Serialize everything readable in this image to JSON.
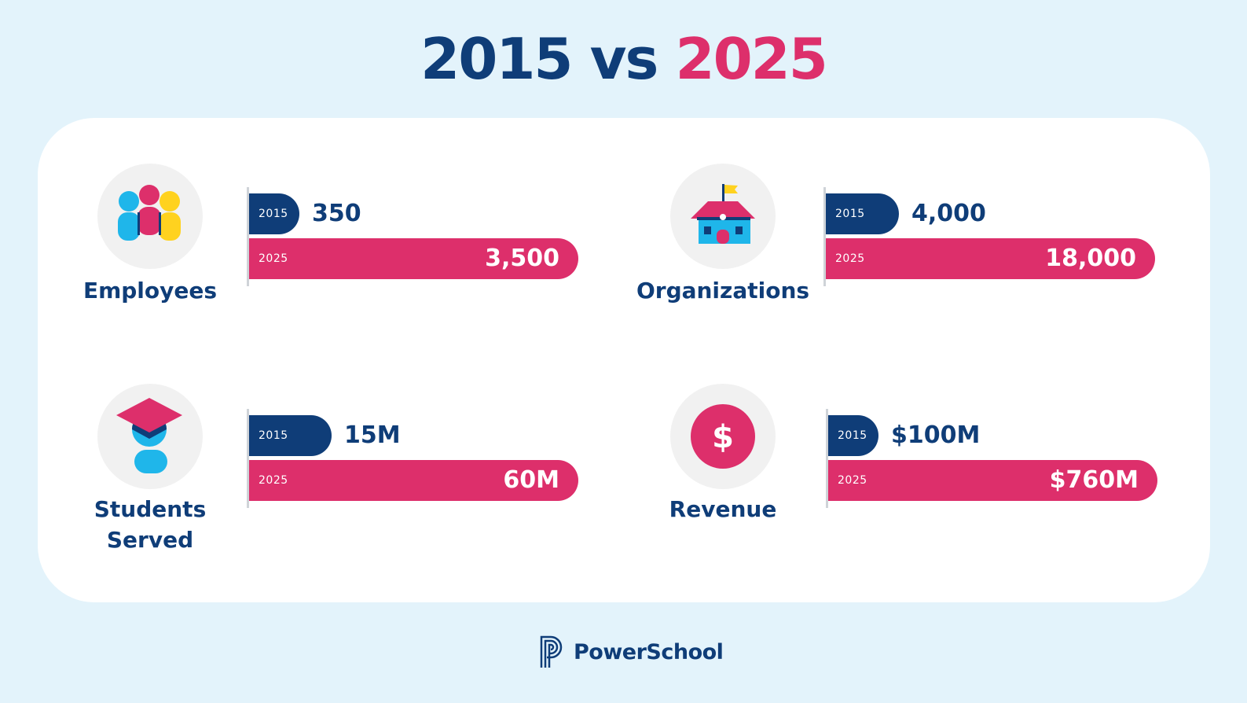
{
  "title": {
    "left": "2015",
    "middle": "vs",
    "right": "2025"
  },
  "colors": {
    "navy": "#0f3d78",
    "pink": "#dd2f6b",
    "background": "#e3f3fb"
  },
  "chart_data": [
    {
      "type": "bar",
      "orientation": "horizontal",
      "label": "Employees",
      "icon": "people-icon",
      "series": [
        {
          "name": "2015",
          "value": 350,
          "display": "350"
        },
        {
          "name": "2025",
          "value": 3500,
          "display": "3,500"
        }
      ]
    },
    {
      "type": "bar",
      "orientation": "horizontal",
      "label": "Organizations",
      "icon": "school-icon",
      "series": [
        {
          "name": "2015",
          "value": 4000,
          "display": "4,000"
        },
        {
          "name": "2025",
          "value": 18000,
          "display": "18,000"
        }
      ]
    },
    {
      "type": "bar",
      "orientation": "horizontal",
      "label": "Students Served",
      "icon": "graduate-icon",
      "series": [
        {
          "name": "2015",
          "value": 15000000,
          "display": "15M"
        },
        {
          "name": "2025",
          "value": 60000000,
          "display": "60M"
        }
      ]
    },
    {
      "type": "bar",
      "orientation": "horizontal",
      "label": "Revenue",
      "icon": "dollar-icon",
      "series": [
        {
          "name": "2015",
          "value": 100000000,
          "display": "$100M"
        },
        {
          "name": "2025",
          "value": 760000000,
          "display": "$760M"
        }
      ]
    }
  ],
  "labels": {
    "employees": "Employees",
    "organizations": "Organizations",
    "students_line1": "Students",
    "students_line2": "Served",
    "revenue": "Revenue"
  },
  "logo": {
    "text": "PowerSchool"
  }
}
